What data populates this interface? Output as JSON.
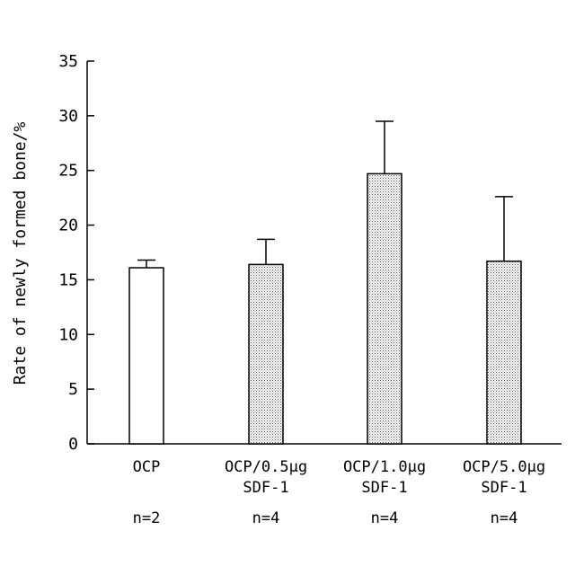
{
  "chart_data": {
    "type": "bar",
    "title": "",
    "xlabel": "",
    "ylabel": "Rate of newly formed bone/%",
    "ylim": [
      0,
      35
    ],
    "yticks": [
      0,
      5,
      10,
      15,
      20,
      25,
      30,
      35
    ],
    "grid": false,
    "categories": [
      {
        "line1": "OCP",
        "line2": "",
        "n": "n=2"
      },
      {
        "line1": "OCP/0.5μg",
        "line2": "SDF-1",
        "n": "n=4"
      },
      {
        "line1": "OCP/1.0μg",
        "line2": "SDF-1",
        "n": "n=4"
      },
      {
        "line1": "OCP/5.0μg",
        "line2": "SDF-1",
        "n": "n=4"
      }
    ],
    "values": [
      16.1,
      16.4,
      24.7,
      16.7
    ],
    "errors": [
      0.7,
      2.3,
      4.8,
      5.9
    ],
    "fills": [
      "white",
      "dotted",
      "dotted",
      "dotted"
    ]
  }
}
